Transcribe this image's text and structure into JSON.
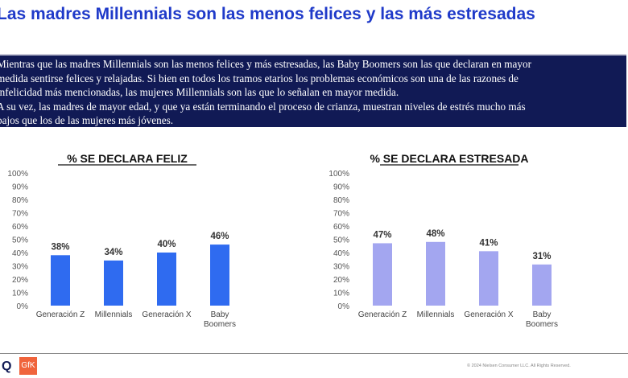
{
  "title": "Las madres Millennials son las menos felices y las más estresadas",
  "summary": [
    "Mientras que las madres Millennials son las menos felices  y  más estresadas, las Baby Boomers son las que declaran en mayor",
    "medida sentirse felices y relajadas. Si bien en todos los tramos etarios los problemas económicos son una de las razones de",
    "infelicidad más mencionadas, las mujeres Millennials son las que lo señalan en mayor medida.",
    "A su vez, las madres de mayor edad, y que ya están terminando el proceso de crianza, muestran niveles de estrés mucho más",
    "bajos que los de las mujeres más jóvenes."
  ],
  "chart_data": [
    {
      "type": "bar",
      "title": "% SE DECLARA FELIZ",
      "categories": [
        "Generación Z",
        "Millennials",
        "Generación X",
        "Baby Boomers"
      ],
      "values": [
        38,
        34,
        40,
        46
      ],
      "labels": [
        "38%",
        "34%",
        "40%",
        "46%"
      ],
      "yticks": [
        "0%",
        "10%",
        "20%",
        "30%",
        "40%",
        "50%",
        "60%",
        "70%",
        "80%",
        "90%",
        "100%"
      ],
      "ylim": [
        0,
        100
      ],
      "color": "#2f6bf0"
    },
    {
      "type": "bar",
      "title": "% SE DECLARA ESTRESADA",
      "categories": [
        "Generación Z",
        "Millennials",
        "Generación X",
        "Baby Boomers"
      ],
      "values": [
        47,
        48,
        41,
        31
      ],
      "labels": [
        "47%",
        "48%",
        "41%",
        "31%"
      ],
      "yticks": [
        "0%",
        "10%",
        "20%",
        "30%",
        "40%",
        "50%",
        "60%",
        "70%",
        "80%",
        "90%",
        "100%"
      ],
      "ylim": [
        0,
        100
      ],
      "color": "#a3a6f0"
    }
  ],
  "footer": {
    "logo_q": "Q",
    "logo_gfk": "GfK",
    "copyright": "© 2024 Nielsen Consumer LLC. All Rights Reserved."
  }
}
